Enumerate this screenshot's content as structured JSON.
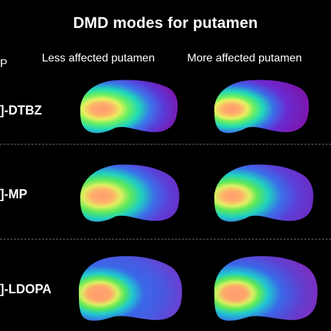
{
  "figure": {
    "title": "DMD modes for putamen",
    "corner_mark": "P",
    "columns": [
      "Less affected putamen",
      "More affected putamen"
    ],
    "rows": [
      {
        "label": "]-DTBZ"
      },
      {
        "label": "]-MP"
      },
      {
        "label": "]-LDOPA"
      }
    ]
  },
  "colors": {
    "background": "#000000",
    "high": "#ff9a70",
    "mid_high": "#7cf05a",
    "mid": "#19d0c8",
    "low": "#4a5ae8",
    "lowest": "#7a18b0"
  }
}
